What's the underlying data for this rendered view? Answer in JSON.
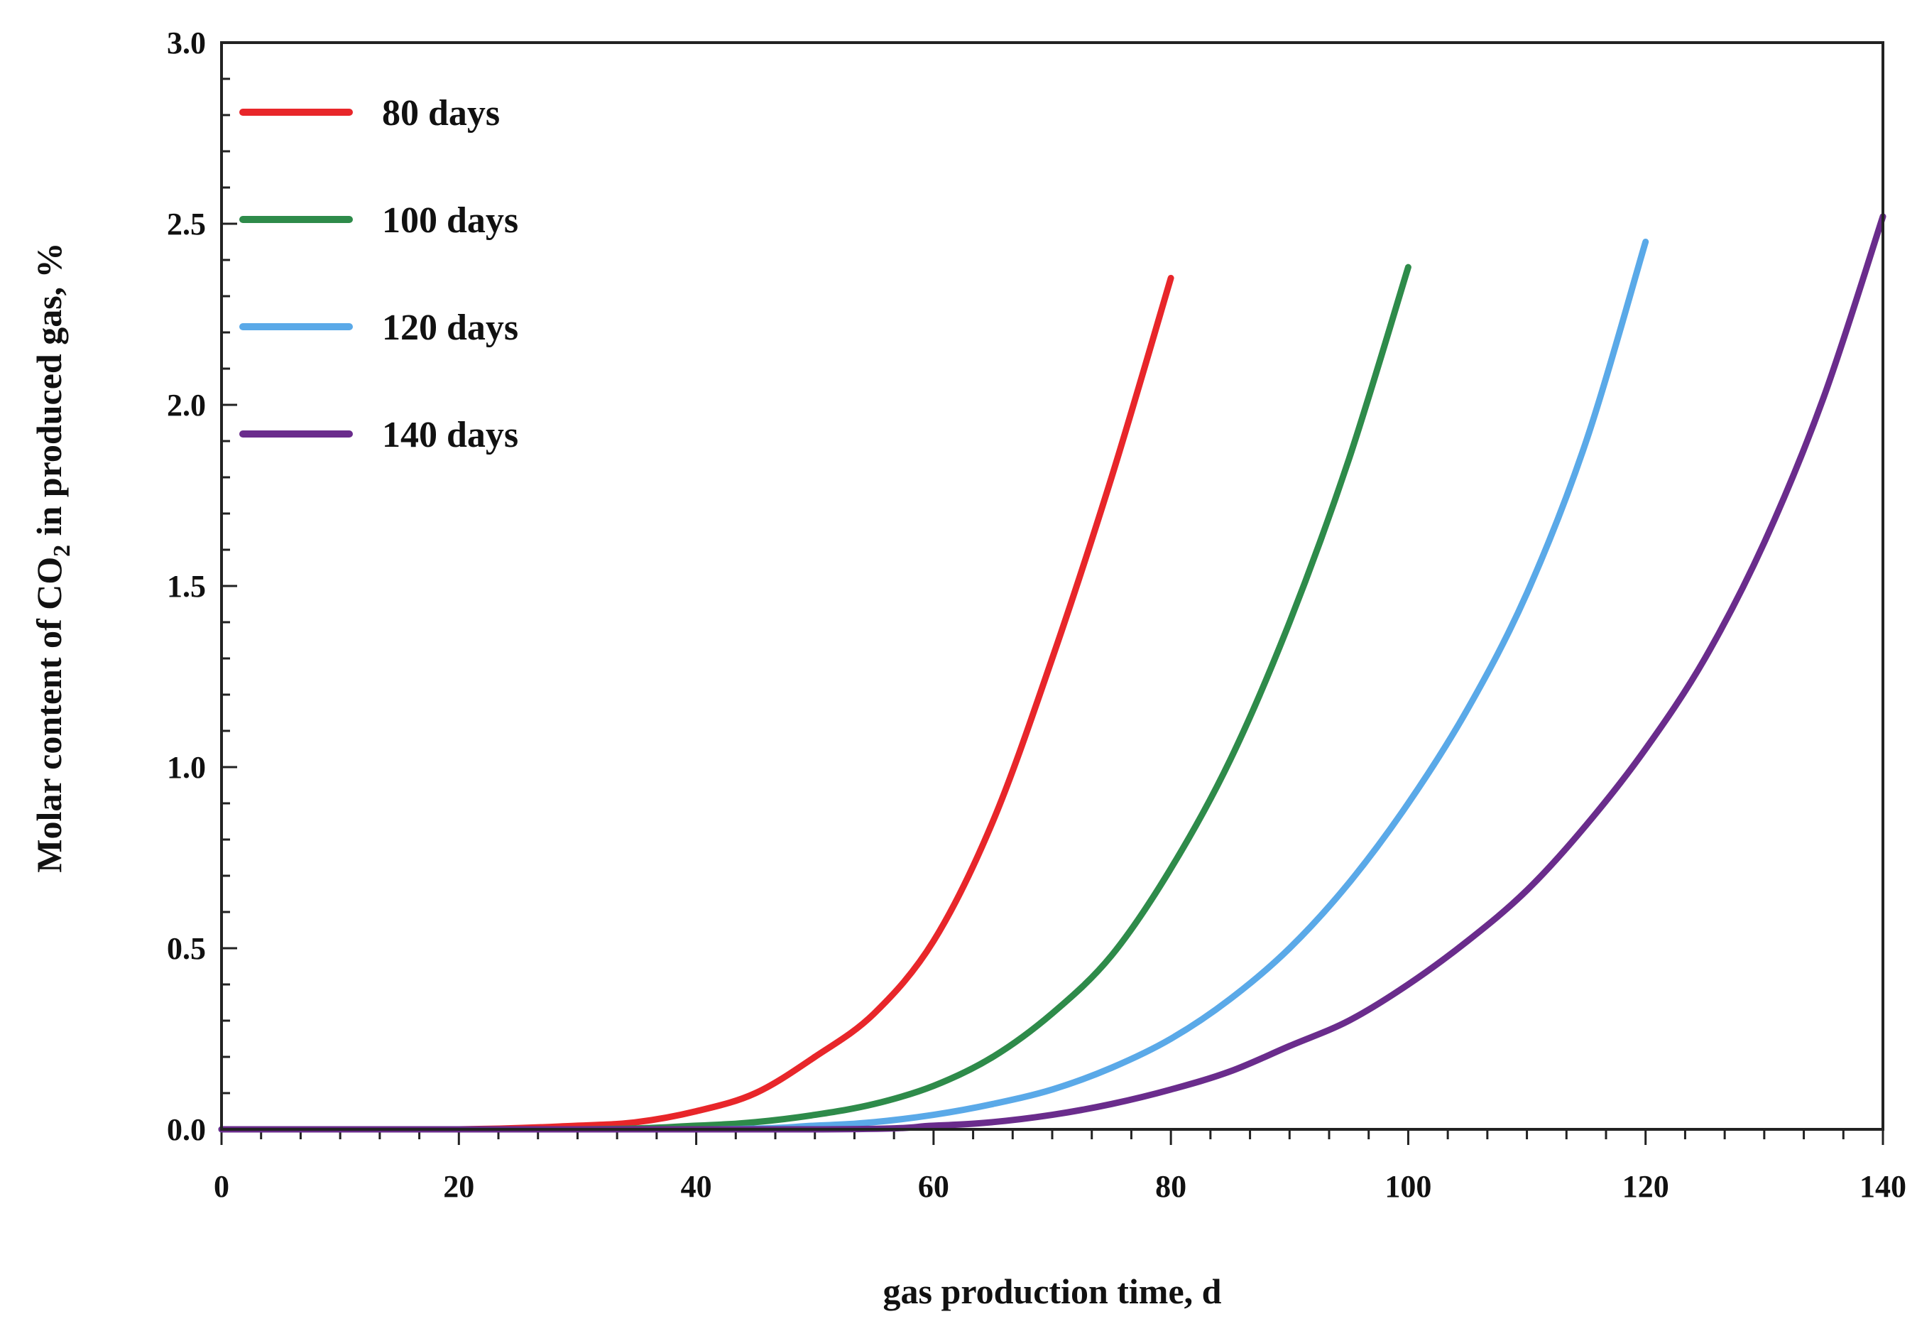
{
  "chart_data": {
    "type": "line",
    "title": "",
    "xlabel": "gas production time, d",
    "ylabel": {
      "prefix": "Molar content of CO",
      "subscript": "2",
      "suffix": " in produced gas, %"
    },
    "xlim": [
      0,
      140
    ],
    "ylim": [
      0,
      3.0
    ],
    "x_ticks": [
      "0",
      "20",
      "40",
      "60",
      "80",
      "100",
      "120",
      "140"
    ],
    "y_ticks": [
      "0.0",
      "0.5",
      "1.0",
      "1.5",
      "2.0",
      "2.5",
      "3.0"
    ],
    "grid": false,
    "legend_position": "top-left",
    "series": [
      {
        "name": "80 days",
        "color": "#e8262a",
        "x": [
          0,
          20,
          30,
          35,
          40,
          45,
          50,
          55,
          60,
          65,
          70,
          75,
          80
        ],
        "y": [
          0,
          0,
          0.01,
          0.02,
          0.05,
          0.1,
          0.2,
          0.32,
          0.52,
          0.85,
          1.3,
          1.8,
          2.35
        ]
      },
      {
        "name": "100 days",
        "color": "#2e8b4a",
        "x": [
          0,
          30,
          40,
          45,
          50,
          55,
          60,
          65,
          70,
          75,
          80,
          85,
          90,
          95,
          100
        ],
        "y": [
          0,
          0,
          0.01,
          0.02,
          0.04,
          0.07,
          0.12,
          0.2,
          0.32,
          0.48,
          0.72,
          1.02,
          1.4,
          1.85,
          2.38
        ]
      },
      {
        "name": "120 days",
        "color": "#5aa9e8",
        "x": [
          0,
          40,
          50,
          55,
          60,
          65,
          70,
          75,
          80,
          85,
          90,
          95,
          100,
          105,
          110,
          115,
          120
        ],
        "y": [
          0,
          0,
          0.01,
          0.02,
          0.04,
          0.07,
          0.11,
          0.17,
          0.25,
          0.36,
          0.5,
          0.68,
          0.9,
          1.16,
          1.48,
          1.9,
          2.45
        ]
      },
      {
        "name": "140 days",
        "color": "#6a2c8c",
        "x": [
          0,
          50,
          60,
          65,
          70,
          75,
          80,
          85,
          90,
          95,
          100,
          105,
          110,
          115,
          120,
          125,
          130,
          135,
          140
        ],
        "y": [
          0,
          0,
          0.01,
          0.02,
          0.04,
          0.07,
          0.11,
          0.16,
          0.23,
          0.3,
          0.4,
          0.52,
          0.66,
          0.84,
          1.05,
          1.3,
          1.62,
          2.02,
          2.52
        ]
      }
    ]
  }
}
